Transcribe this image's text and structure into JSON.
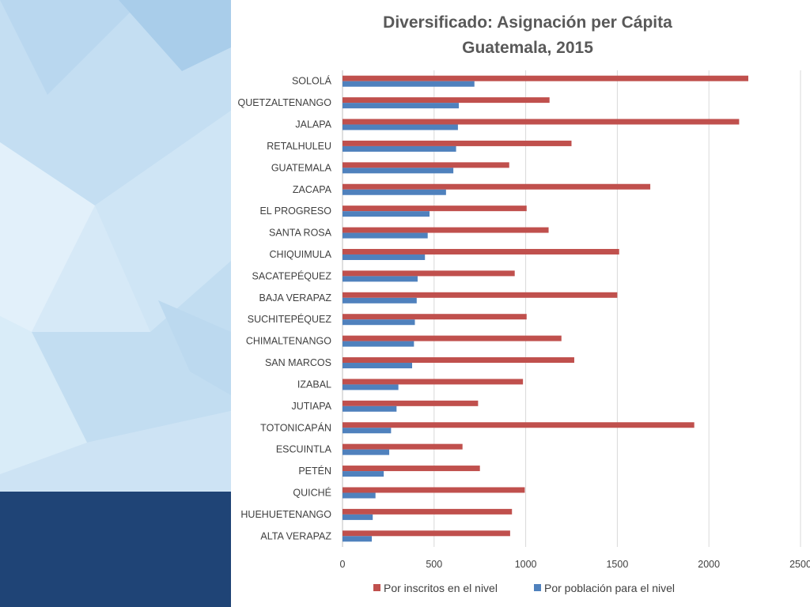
{
  "chart_data": {
    "type": "bar",
    "orientation": "horizontal",
    "title": [
      "Diversificado: Asignación per Cápita",
      "Guatemala, 2015"
    ],
    "categories": [
      "SOLOLÁ",
      "QUETZALTENANGO",
      "JALAPA",
      "RETALHULEU",
      "GUATEMALA",
      "ZACAPA",
      "EL PROGRESO",
      "SANTA ROSA",
      "CHIQUIMULA",
      "SACATEPÉQUEZ",
      "BAJA VERAPAZ",
      "SUCHITEPÉQUEZ",
      "CHIMALTENANGO",
      "SAN MARCOS",
      "IZABAL",
      "JUTIAPA",
      "TOTONICAPÁN",
      "ESCUINTLA",
      "PETÉN",
      "QUICHÉ",
      "HUEHUETENANGO",
      "ALTA VERAPAZ"
    ],
    "series": [
      {
        "name": "Por inscritos en el nivel",
        "color": "#c0504d",
        "values": [
          2215,
          1130,
          2165,
          1250,
          910,
          1680,
          1005,
          1125,
          1510,
          940,
          1500,
          1005,
          1195,
          1265,
          985,
          740,
          1920,
          655,
          750,
          995,
          925,
          915
        ]
      },
      {
        "name": "Por población para el nivel",
        "color": "#4f81bd",
        "values": [
          720,
          635,
          630,
          620,
          605,
          565,
          475,
          465,
          450,
          410,
          405,
          395,
          390,
          380,
          305,
          295,
          265,
          255,
          225,
          180,
          165,
          160
        ]
      }
    ],
    "xlim": [
      0,
      2500
    ],
    "xticks": [
      "0",
      "500",
      "1000",
      "1500",
      "2000",
      "2500"
    ],
    "xtick_values": [
      0,
      500,
      1000,
      1500,
      2000,
      2500
    ],
    "grid": "vertical",
    "legend_position": "bottom"
  },
  "colors": {
    "sidebar_dark": "#1f4476",
    "sidebar_light": "#d3e7f6",
    "gridline": "#d9d9d9",
    "text": "#404040"
  }
}
